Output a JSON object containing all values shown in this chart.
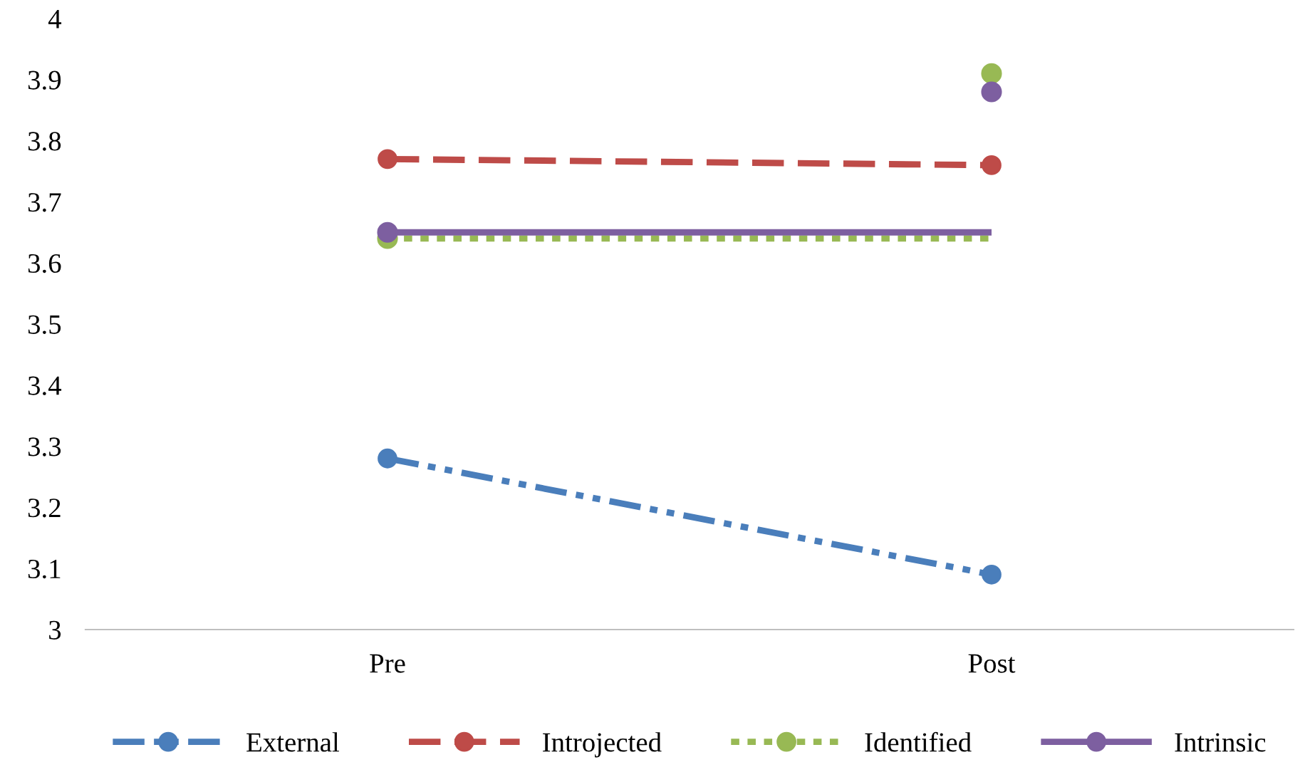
{
  "chart_data": {
    "type": "line",
    "categories": [
      "Pre",
      "Post"
    ],
    "series": [
      {
        "name": "External",
        "color": "#4a7ebb",
        "values": [
          3.28,
          3.09
        ],
        "line_style": "dashdot",
        "marker": "circle"
      },
      {
        "name": "Introjected",
        "color": "#be4b48",
        "values": [
          3.77,
          3.76
        ],
        "line_style": "dashed",
        "marker": "circle"
      },
      {
        "name": "Identified",
        "color": "#98b954",
        "values": [
          3.64,
          3.64
        ],
        "line_style": "dotted",
        "marker": "none"
      },
      {
        "name": "Intrinsic",
        "color": "#7d5fa0",
        "values": [
          3.65,
          3.65
        ],
        "line_style": "solid",
        "marker": "none"
      },
      {
        "type": "scatter",
        "color": "#98b954",
        "values": [
          3.64,
          3.91
        ],
        "marker": "circle"
      },
      {
        "type": "scatter",
        "color": "#7d5fa0",
        "values": [
          3.65,
          3.88
        ],
        "marker": "circle"
      }
    ],
    "ylim": [
      3,
      4
    ],
    "yticks": [
      3,
      3.1,
      3.2,
      3.3,
      3.4,
      3.5,
      3.6,
      3.7,
      3.8,
      3.9,
      4
    ],
    "grid": false,
    "legend": "bottom",
    "marker": "circle"
  }
}
